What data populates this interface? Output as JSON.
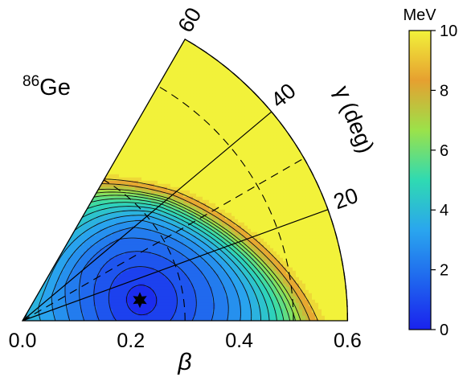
{
  "chart_data": {
    "type": "heatmap",
    "nucleus": {
      "mass_number": "86",
      "symbol": "Ge"
    },
    "coordinate_system": "polar beta-gamma sector (x = beta, angle = gamma)",
    "beta_axis": {
      "label": "β",
      "range": [
        0.0,
        0.6
      ],
      "ticks": [
        "0.0",
        "0.2",
        "0.4",
        "0.6"
      ]
    },
    "gamma_axis": {
      "label": "γ (deg)",
      "range": [
        0,
        60
      ],
      "ticks": [
        "20",
        "40",
        "60"
      ]
    },
    "minimum": {
      "beta": 0.22,
      "gamma": 10,
      "marker": "star"
    },
    "colorbar": {
      "unit": "MeV",
      "range": [
        0,
        10
      ],
      "ticks": [
        "0",
        "2",
        "4",
        "6",
        "8",
        "10"
      ],
      "colors": [
        "#1a22ee",
        "#1f66ee",
        "#2aa6ee",
        "#2fdab2",
        "#9be24a",
        "#e6a030",
        "#f2f23a"
      ]
    },
    "contour_levels_MeV": [
      0.5,
      1,
      1.5,
      2,
      2.5,
      3,
      3.5,
      4,
      4.5,
      5,
      5.5,
      6,
      6.5,
      7,
      8,
      9
    ],
    "fill_levels_MeV": [
      0,
      0.5,
      1,
      1.5,
      2,
      2.5,
      3,
      3.5,
      4,
      4.5,
      5,
      5.5,
      6,
      6.5,
      7,
      7.5,
      8,
      9,
      10
    ],
    "dashed_guides": {
      "beta_arcs": [
        0.3,
        0.5
      ],
      "gamma_rays_deg": [
        30
      ]
    },
    "solid_guides": {
      "gamma_rays_deg": [
        20,
        40
      ]
    },
    "surface_description": "minimum near beta=0.22, gamma~10 deg; steep wall toward larger beta and gamma; saturates at 10 MeV"
  }
}
